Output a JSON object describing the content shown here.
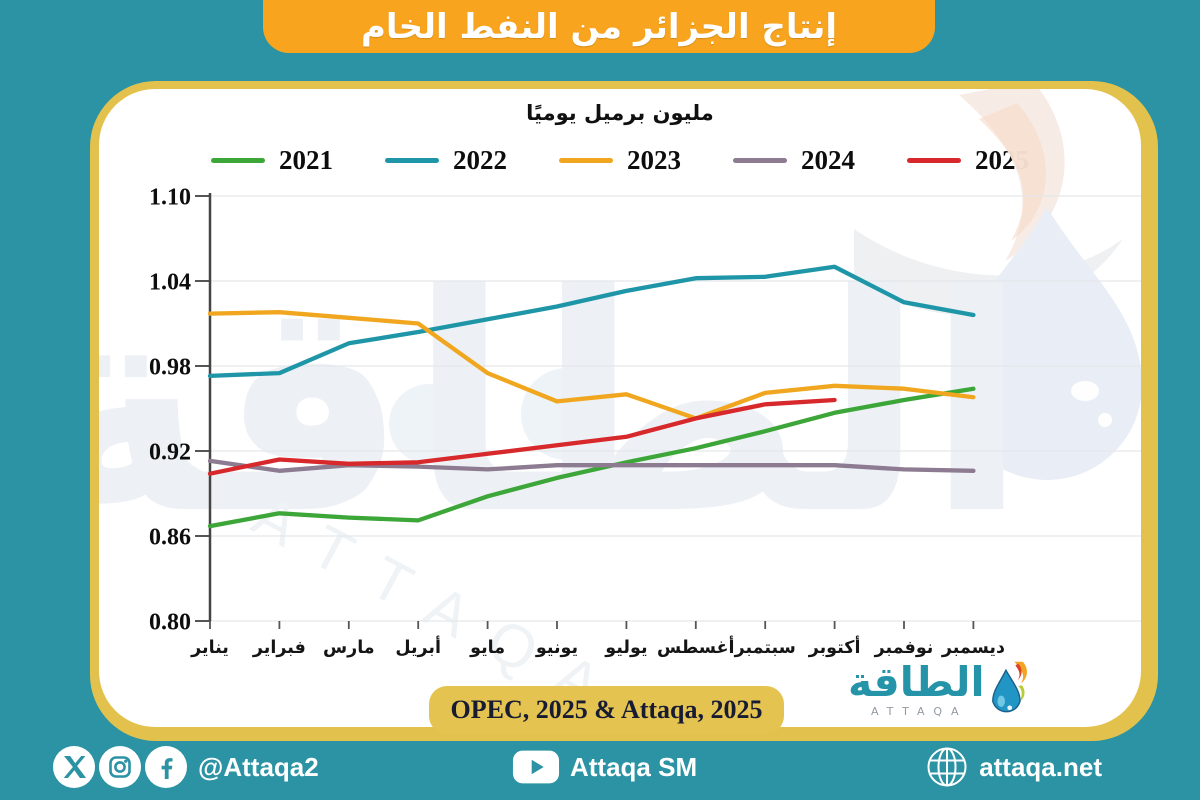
{
  "banner": {
    "title": "إنتاج الجزائر من النفط الخام"
  },
  "chart_data": {
    "type": "line",
    "title": "إنتاج الجزائر من النفط الخام",
    "subtitle": "مليون برميل يوميًا",
    "unit": "million barrels per day",
    "categories": [
      "يناير",
      "فبراير",
      "مارس",
      "أبريل",
      "مايو",
      "يونيو",
      "يوليو",
      "أغسطس",
      "سبتمبر",
      "أكتوبر",
      "نوفمبر",
      "ديسمبر"
    ],
    "series": [
      {
        "name": "2021",
        "color": "#3da639",
        "values": [
          0.867,
          0.876,
          0.873,
          0.871,
          0.888,
          0.901,
          0.912,
          0.922,
          0.934,
          0.947,
          0.956,
          0.964
        ]
      },
      {
        "name": "2022",
        "color": "#1f96a8",
        "values": [
          0.973,
          0.975,
          0.996,
          1.004,
          1.013,
          1.022,
          1.033,
          1.042,
          1.043,
          1.05,
          1.025,
          1.016
        ]
      },
      {
        "name": "2023",
        "color": "#f0a71f",
        "values": [
          1.017,
          1.018,
          1.014,
          1.01,
          0.975,
          0.955,
          0.96,
          0.943,
          0.961,
          0.966,
          0.964,
          0.958
        ]
      },
      {
        "name": "2024",
        "color": "#8d7b91",
        "values": [
          0.913,
          0.906,
          0.91,
          0.909,
          0.907,
          0.91,
          0.91,
          0.91,
          0.91,
          0.91,
          0.907,
          0.906
        ]
      },
      {
        "name": "2025",
        "color": "#d7282b",
        "values": [
          0.904,
          0.914,
          0.911,
          0.912,
          0.918,
          0.924,
          0.93,
          0.943,
          0.953,
          0.956,
          null,
          null
        ]
      }
    ],
    "ylim": [
      0.8,
      1.1
    ],
    "yticks": [
      0.8,
      0.86,
      0.92,
      0.98,
      1.04,
      1.1
    ],
    "grid": "horizontal-only",
    "legend_position": "top"
  },
  "source": {
    "label": "OPEC, 2025 & Attaqa, 2025"
  },
  "logo": {
    "arabic": "الطاقة",
    "latin": "ATTAQA"
  },
  "watermark": {
    "arabic": "الطاقة",
    "latin": "ATTAQA"
  },
  "footer": {
    "social_handle": "@Attaqa2",
    "youtube_label": "Attaqa SM",
    "website": "attaqa.net"
  },
  "colors": {
    "background_teal": "#2b93a3",
    "banner_orange": "#f8a41f",
    "gold_border": "#e2c24d",
    "pill_gold": "#e4c351",
    "logo_teal": "#2694a8"
  }
}
